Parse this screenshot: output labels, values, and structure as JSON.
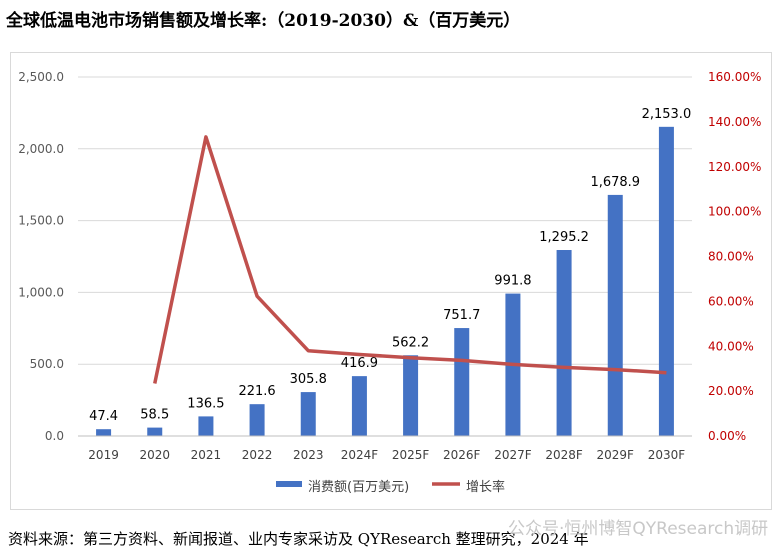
{
  "title": "全球低温电池市场销售额及增长率:（2019-2030）&（百万美元）",
  "source": "资料来源：第三方资料、新闻报道、业内专家采访及 QYResearch 整理研究，2024 年",
  "watermark": "公众号·恒州博智QYResearch调研",
  "colors": {
    "bar": "#4472c4",
    "line": "#c0504d",
    "right_axis": "#c00000",
    "grid": "#d9d9d9"
  },
  "chart_data": {
    "type": "bar+line",
    "categories": [
      "2019",
      "2020",
      "2021",
      "2022",
      "2023",
      "2024F",
      "2025F",
      "2026F",
      "2027F",
      "2028F",
      "2029F",
      "2030F"
    ],
    "series": [
      {
        "name": "消费额(百万美元)",
        "type": "bar",
        "axis": "left",
        "values": [
          47.4,
          58.5,
          136.5,
          221.6,
          305.8,
          416.9,
          562.2,
          751.7,
          991.8,
          1295.2,
          1678.9,
          2153.0
        ],
        "labels": [
          "47.4",
          "58.5",
          "136.5",
          "221.6",
          "305.8",
          "416.9",
          "562.2",
          "751.7",
          "991.8",
          "1,295.2",
          "1,678.9",
          "2,153.0"
        ]
      },
      {
        "name": "增长率",
        "type": "line",
        "axis": "right",
        "values": [
          null,
          23.4,
          133.3,
          62.3,
          38.0,
          36.3,
          34.9,
          33.7,
          31.9,
          30.6,
          29.6,
          28.2
        ]
      }
    ],
    "ylim_left": [
      0,
      2500
    ],
    "yticks_left": [
      "0.0",
      "500.0",
      "1,000.0",
      "1,500.0",
      "2,000.0",
      "2,500.0"
    ],
    "ylim_right": [
      0,
      160
    ],
    "yticks_right": [
      "0.00%",
      "20.00%",
      "40.00%",
      "60.00%",
      "80.00%",
      "100.00%",
      "120.00%",
      "140.00%",
      "160.00%"
    ],
    "legend": [
      "消费额(百万美元)",
      "增长率"
    ],
    "legend_position": "bottom"
  }
}
